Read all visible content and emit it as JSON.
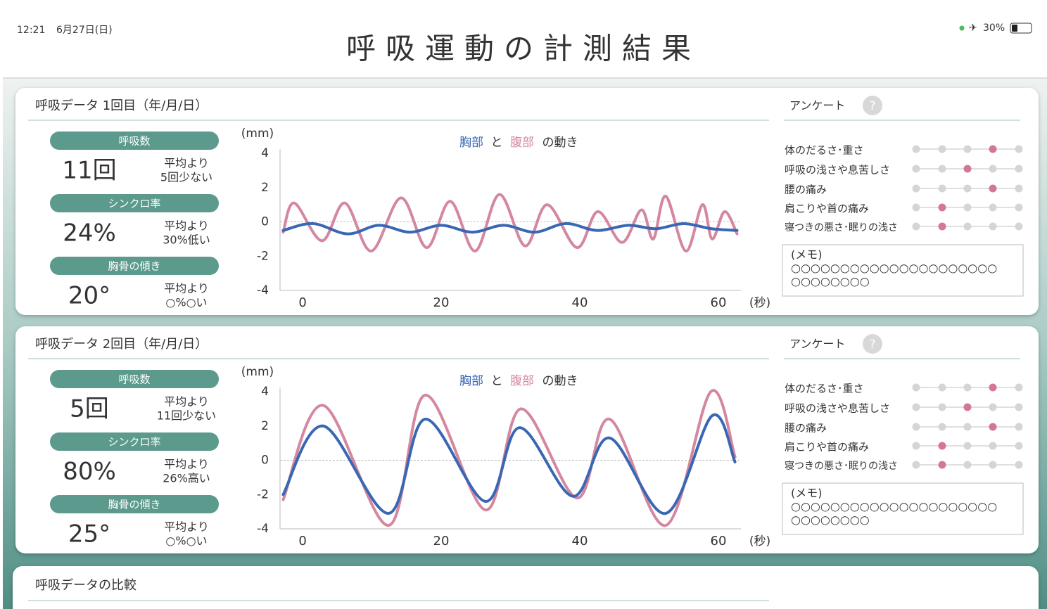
{
  "status": {
    "time": "12:21",
    "date": "6月27日(日)",
    "battery": "30%"
  },
  "title": "呼吸運動の計測結果",
  "panels": [
    {
      "heading": "呼吸データ 1回目（年/月/日）",
      "stats": [
        {
          "label": "呼吸数",
          "value": "11回",
          "compare": [
            "平均より",
            "5回少ない"
          ]
        },
        {
          "label": "シンクロ率",
          "value": "24%",
          "compare": [
            "平均より",
            "30%低い"
          ]
        },
        {
          "label": "胸骨の傾き",
          "value": "20°",
          "compare": [
            "平均より",
            "○%○い"
          ]
        }
      ],
      "chart_data": {
        "type": "line",
        "y_unit": "(mm)",
        "x_unit": "(秒)",
        "legend_joiner": "と",
        "legend_suffix": "の動き",
        "xlim": [
          -3,
          63
        ],
        "xticks": [
          0,
          20,
          40,
          60
        ],
        "ylim": [
          -4,
          4
        ],
        "yticks": [
          -4,
          -2,
          0,
          2,
          4
        ],
        "series": [
          {
            "name": "胸部",
            "color": "#3a67b4",
            "x": [
              -2.8,
              1.5,
              6.5,
              11,
              15.5,
              20,
              24.5,
              29,
              33.5,
              38,
              42.5,
              47,
              51,
              55,
              59,
              62.7
            ],
            "values": [
              -0.5,
              -0.1,
              -0.7,
              -0.2,
              -0.6,
              -0.2,
              -0.6,
              -0.2,
              -0.6,
              -0.1,
              -0.5,
              -0.2,
              -0.4,
              -0.1,
              -0.4,
              -0.5
            ]
          },
          {
            "name": "腹部",
            "color": "#d4879f",
            "x": [
              -2.8,
              -1.2,
              2.8,
              6.1,
              9.9,
              14.2,
              17.9,
              21.3,
              24.9,
              28.4,
              32.1,
              35.3,
              39.6,
              42.6,
              46.1,
              48.9,
              50.6,
              52.4,
              55.3,
              57.7,
              59.1,
              60.9,
              62.7
            ],
            "values": [
              -0.6,
              1.1,
              -1.1,
              1.1,
              -1.7,
              1.4,
              -1.5,
              1.2,
              -1.7,
              1.6,
              -1.4,
              1.0,
              -1.5,
              0.6,
              -1.2,
              0.7,
              -1.0,
              1.5,
              -1.7,
              1.0,
              -1.0,
              0.6,
              -0.7
            ]
          }
        ]
      },
      "survey": {
        "title": "アンケート",
        "help": "?",
        "items": [
          {
            "label": "体のだるさ･重さ",
            "selected": 3
          },
          {
            "label": "呼吸の浅さや息苦しさ",
            "selected": 2
          },
          {
            "label": "腰の痛み",
            "selected": 3
          },
          {
            "label": "肩こりや首の痛み",
            "selected": 1
          },
          {
            "label": "寝つきの悪さ･眠りの浅さ",
            "selected": 1
          }
        ],
        "memo": [
          "(メモ)",
          "○○○○○○○○○○○○○○○○○○○○○",
          "○○○○○○○○"
        ]
      }
    },
    {
      "heading": "呼吸データ 2回目（年/月/日）",
      "stats": [
        {
          "label": "呼吸数",
          "value": "5回",
          "compare": [
            "平均より",
            "11回少ない"
          ]
        },
        {
          "label": "シンクロ率",
          "value": "80%",
          "compare": [
            "平均より",
            "26%高い"
          ]
        },
        {
          "label": "胸骨の傾き",
          "value": "25°",
          "compare": [
            "平均より",
            "○%○い"
          ]
        }
      ],
      "chart_data": {
        "type": "line",
        "y_unit": "(mm)",
        "x_unit": "(秒)",
        "legend_joiner": "と",
        "legend_suffix": "の動き",
        "xlim": [
          -3,
          63
        ],
        "xticks": [
          0,
          20,
          40,
          60
        ],
        "ylim": [
          -4,
          4
        ],
        "yticks": [
          -4,
          -2,
          0,
          2,
          4
        ],
        "series": [
          {
            "name": "胸部",
            "color": "#3a67b4",
            "x": [
              -2.8,
              3.0,
              12.4,
              17.7,
              26.4,
              31.3,
              39.0,
              44.3,
              52.4,
              59.1,
              62.4
            ],
            "values": [
              -2.0,
              2.0,
              -3.1,
              2.4,
              -2.4,
              1.9,
              -2.1,
              1.3,
              -3.1,
              2.6,
              -0.1
            ]
          },
          {
            "name": "腹部",
            "color": "#d4879f",
            "x": [
              -2.8,
              3.0,
              12.4,
              17.7,
              26.4,
              31.5,
              39.6,
              44.3,
              52.4,
              58.9,
              62.4
            ],
            "values": [
              -2.3,
              3.2,
              -3.8,
              3.8,
              -2.9,
              3.0,
              -2.2,
              2.4,
              -3.8,
              4.0,
              0.2
            ]
          }
        ]
      },
      "survey": {
        "title": "アンケート",
        "help": "?",
        "items": [
          {
            "label": "体のだるさ･重さ",
            "selected": 3
          },
          {
            "label": "呼吸の浅さや息苦しさ",
            "selected": 2
          },
          {
            "label": "腰の痛み",
            "selected": 3
          },
          {
            "label": "肩こりや首の痛み",
            "selected": 1
          },
          {
            "label": "寝つきの悪さ･眠りの浅さ",
            "selected": 1
          }
        ],
        "memo": [
          "(メモ)",
          "○○○○○○○○○○○○○○○○○○○○○",
          "○○○○○○○○"
        ]
      }
    }
  ],
  "comparison": {
    "heading": "呼吸データの比較"
  }
}
